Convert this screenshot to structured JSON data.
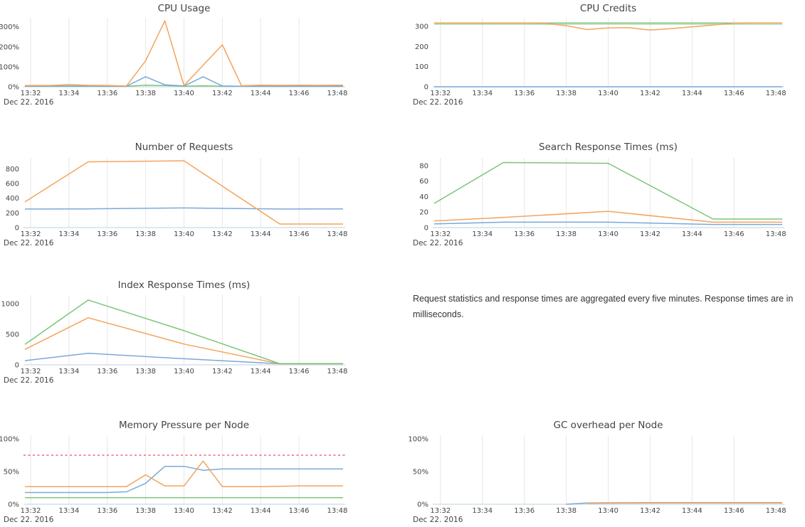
{
  "page": {
    "background": "#ffffff"
  },
  "date_label": "Dec 22. 2016",
  "x_tick_labels": [
    "13:32",
    "13:34",
    "13:36",
    "13:38",
    "13:40",
    "13:42",
    "13:44",
    "13:46",
    "13:48"
  ],
  "colors": {
    "blue": "#7aa9d8",
    "orange": "#f5a35c",
    "green": "#7cc57c",
    "light_green": "#b7dfb4",
    "red": "#ee7585",
    "grid": "#e6e6e6",
    "axis_line": "#c9d9e5",
    "text": "#444444"
  },
  "annotation": {
    "text": "Request statistics and response times are aggregated every five minutes. Response times are in milliseconds."
  },
  "chart_data": [
    {
      "id": "cpu-usage",
      "type": "line",
      "title": "CPU Usage",
      "x_unit": "minutes since 13:32",
      "x_range": [
        0,
        16
      ],
      "ylim": [
        0,
        345
      ],
      "grid": "vertical-only",
      "legend": "none",
      "yticks": [
        {
          "value": 0,
          "label": "0%"
        },
        {
          "value": 100,
          "label": "100%"
        },
        {
          "value": 200,
          "label": "200%"
        },
        {
          "value": 300,
          "label": "300%"
        }
      ],
      "series": [
        {
          "name": "green",
          "color": "green",
          "points": [
            [
              0,
              2
            ],
            [
              2,
              2
            ],
            [
              4,
              2
            ],
            [
              5,
              2
            ],
            [
              6,
              8
            ],
            [
              7,
              6
            ],
            [
              8,
              3
            ],
            [
              9,
              5
            ],
            [
              10,
              3
            ],
            [
              12,
              2
            ],
            [
              14,
              2
            ],
            [
              16,
              2
            ]
          ]
        },
        {
          "name": "blue",
          "color": "blue",
          "points": [
            [
              0,
              4
            ],
            [
              2,
              4
            ],
            [
              4,
              4
            ],
            [
              5,
              3
            ],
            [
              6,
              50
            ],
            [
              7,
              10
            ],
            [
              8,
              4
            ],
            [
              9,
              50
            ],
            [
              10,
              4
            ],
            [
              11,
              3
            ],
            [
              13,
              3
            ],
            [
              16,
              3
            ]
          ]
        },
        {
          "name": "orange",
          "color": "orange",
          "points": [
            [
              0,
              6
            ],
            [
              1,
              6
            ],
            [
              2,
              11
            ],
            [
              3,
              7
            ],
            [
              4,
              6
            ],
            [
              5,
              4
            ],
            [
              6,
              130
            ],
            [
              7,
              330
            ],
            [
              8,
              6
            ],
            [
              10,
              210
            ],
            [
              11,
              5
            ],
            [
              12,
              8
            ],
            [
              13,
              7
            ],
            [
              14,
              8
            ],
            [
              15,
              7
            ],
            [
              16,
              8
            ]
          ]
        }
      ]
    },
    {
      "id": "cpu-credits",
      "type": "line",
      "title": "CPU Credits",
      "x_unit": "minutes since 13:32",
      "x_range": [
        0,
        16
      ],
      "ylim": [
        0,
        342
      ],
      "grid": "vertical-only",
      "legend": "none",
      "yticks": [
        {
          "value": 0,
          "label": "0"
        },
        {
          "value": 100,
          "label": "100"
        },
        {
          "value": 200,
          "label": "200"
        },
        {
          "value": 300,
          "label": "300"
        }
      ],
      "series": [
        {
          "name": "blue",
          "color": "blue",
          "points": [
            [
              0,
              0
            ],
            [
              16,
              0
            ]
          ]
        },
        {
          "name": "light-green",
          "color": "light_green",
          "points": [
            [
              0,
              310
            ],
            [
              16,
              310
            ]
          ]
        },
        {
          "name": "green",
          "color": "green",
          "points": [
            [
              0,
              316
            ],
            [
              16,
              316
            ]
          ]
        },
        {
          "name": "orange",
          "color": "orange",
          "points": [
            [
              0,
              315
            ],
            [
              2,
              315
            ],
            [
              4,
              315
            ],
            [
              5,
              314
            ],
            [
              6,
              303
            ],
            [
              7,
              284
            ],
            [
              8,
              292
            ],
            [
              9,
              293
            ],
            [
              10,
              281
            ],
            [
              11,
              288
            ],
            [
              12,
              297
            ],
            [
              13,
              306
            ],
            [
              14,
              315
            ],
            [
              15,
              316
            ],
            [
              16,
              316
            ]
          ]
        }
      ]
    },
    {
      "id": "number-of-requests",
      "type": "line",
      "title": "Number of Requests",
      "x_unit": "minutes since 13:32",
      "x_range": [
        0,
        16
      ],
      "ylim": [
        0,
        950
      ],
      "grid": "vertical-only",
      "legend": "none",
      "yticks": [
        {
          "value": 0,
          "label": "0"
        },
        {
          "value": 200,
          "label": "200"
        },
        {
          "value": 400,
          "label": "400"
        },
        {
          "value": 600,
          "label": "600"
        },
        {
          "value": 800,
          "label": "800"
        }
      ],
      "series": [
        {
          "name": "blue",
          "color": "blue",
          "points": [
            [
              0,
              253
            ],
            [
              3,
              255
            ],
            [
              8,
              268
            ],
            [
              13,
              253
            ],
            [
              16,
              255
            ]
          ]
        },
        {
          "name": "orange",
          "color": "orange",
          "points": [
            [
              0,
              400
            ],
            [
              3,
              897
            ],
            [
              8,
              910
            ],
            [
              13,
              48
            ],
            [
              16,
              48
            ]
          ]
        }
      ]
    },
    {
      "id": "search-response-times",
      "type": "line",
      "title": "Search Response Times (ms)",
      "x_unit": "minutes since 13:32",
      "x_range": [
        0,
        16
      ],
      "ylim": [
        0,
        90
      ],
      "grid": "vertical-only",
      "legend": "none",
      "yticks": [
        {
          "value": 0,
          "label": "0"
        },
        {
          "value": 20,
          "label": "20"
        },
        {
          "value": 40,
          "label": "40"
        },
        {
          "value": 60,
          "label": "60"
        },
        {
          "value": 80,
          "label": "80"
        }
      ],
      "series": [
        {
          "name": "blue",
          "color": "blue",
          "points": [
            [
              0,
              5
            ],
            [
              3,
              7
            ],
            [
              8,
              7
            ],
            [
              13,
              4
            ],
            [
              16,
              4
            ]
          ]
        },
        {
          "name": "orange",
          "color": "orange",
          "points": [
            [
              0,
              9
            ],
            [
              3,
              13
            ],
            [
              8,
              21
            ],
            [
              13,
              7
            ],
            [
              16,
              7
            ]
          ]
        },
        {
          "name": "green",
          "color": "green",
          "points": [
            [
              0,
              36
            ],
            [
              3,
              84
            ],
            [
              8,
              83
            ],
            [
              13,
              11
            ],
            [
              16,
              11
            ]
          ]
        }
      ]
    },
    {
      "id": "index-response-times",
      "type": "line",
      "title": "Index Response Times (ms)",
      "x_unit": "minutes since 13:32",
      "x_range": [
        0,
        16
      ],
      "ylim": [
        0,
        1140
      ],
      "grid": "vertical-only",
      "legend": "none",
      "yticks": [
        {
          "value": 0,
          "label": "0"
        },
        {
          "value": 500,
          "label": "500"
        },
        {
          "value": 1000,
          "label": "1000"
        }
      ],
      "series": [
        {
          "name": "blue",
          "color": "blue",
          "points": [
            [
              0,
              80
            ],
            [
              3,
              190
            ],
            [
              8,
              100
            ],
            [
              13,
              18
            ],
            [
              16,
              18
            ]
          ]
        },
        {
          "name": "orange",
          "color": "orange",
          "points": [
            [
              0,
              300
            ],
            [
              3,
              770
            ],
            [
              8,
              340
            ],
            [
              13,
              18
            ],
            [
              16,
              18
            ]
          ]
        },
        {
          "name": "green",
          "color": "green",
          "points": [
            [
              0,
              400
            ],
            [
              3,
              1060
            ],
            [
              8,
              560
            ],
            [
              13,
              20
            ],
            [
              16,
              20
            ]
          ]
        }
      ]
    },
    {
      "id": "memory-pressure",
      "type": "line",
      "title": "Memory Pressure per Node",
      "x_unit": "minutes since 13:32",
      "x_range": [
        0,
        16
      ],
      "ylim": [
        0,
        105.5
      ],
      "grid": "vertical-only",
      "legend": "none",
      "yticks": [
        {
          "value": 0,
          "label": "0%"
        },
        {
          "value": 50,
          "label": "50%"
        },
        {
          "value": 100,
          "label": "100%"
        }
      ],
      "threshold": {
        "value": 75,
        "style": "dotted",
        "color": "red"
      },
      "series": [
        {
          "name": "green",
          "color": "green",
          "points": [
            [
              0,
              10
            ],
            [
              16,
              10
            ]
          ]
        },
        {
          "name": "blue",
          "color": "blue",
          "points": [
            [
              0,
              18
            ],
            [
              2,
              18
            ],
            [
              4,
              18
            ],
            [
              5,
              19
            ],
            [
              6,
              32
            ],
            [
              7,
              58
            ],
            [
              8,
              58
            ],
            [
              9,
              52
            ],
            [
              10,
              54
            ],
            [
              12,
              54
            ],
            [
              14,
              54
            ],
            [
              16,
              54
            ]
          ]
        },
        {
          "name": "orange",
          "color": "orange",
          "points": [
            [
              0,
              27
            ],
            [
              2,
              27
            ],
            [
              4,
              27
            ],
            [
              5,
              27
            ],
            [
              6,
              45
            ],
            [
              7,
              28
            ],
            [
              8,
              28
            ],
            [
              9,
              66
            ],
            [
              10,
              27
            ],
            [
              12,
              27
            ],
            [
              14,
              28
            ],
            [
              16,
              28
            ]
          ]
        }
      ]
    },
    {
      "id": "gc-overhead",
      "type": "line",
      "title": "GC overhead per Node",
      "x_unit": "minutes since 13:32",
      "x_range": [
        0,
        16
      ],
      "ylim": [
        0,
        105.5
      ],
      "grid": "vertical-only",
      "legend": "none",
      "yticks": [
        {
          "value": 0,
          "label": "0%"
        },
        {
          "value": 50,
          "label": "50%"
        },
        {
          "value": 100,
          "label": "100%"
        }
      ],
      "series": [
        {
          "name": "blue",
          "color": "blue",
          "points": [
            [
              6,
              0
            ],
            [
              7,
              1.8
            ],
            [
              8,
              2.2
            ],
            [
              10,
              2.5
            ],
            [
              13,
              2.5
            ],
            [
              16,
              2.5
            ]
          ]
        },
        {
          "name": "orange",
          "color": "orange",
          "points": [
            [
              7,
              1.2
            ],
            [
              8,
              1.6
            ],
            [
              10,
              1.8
            ],
            [
              13,
              1.8
            ],
            [
              16,
              1.8
            ]
          ]
        }
      ]
    }
  ]
}
